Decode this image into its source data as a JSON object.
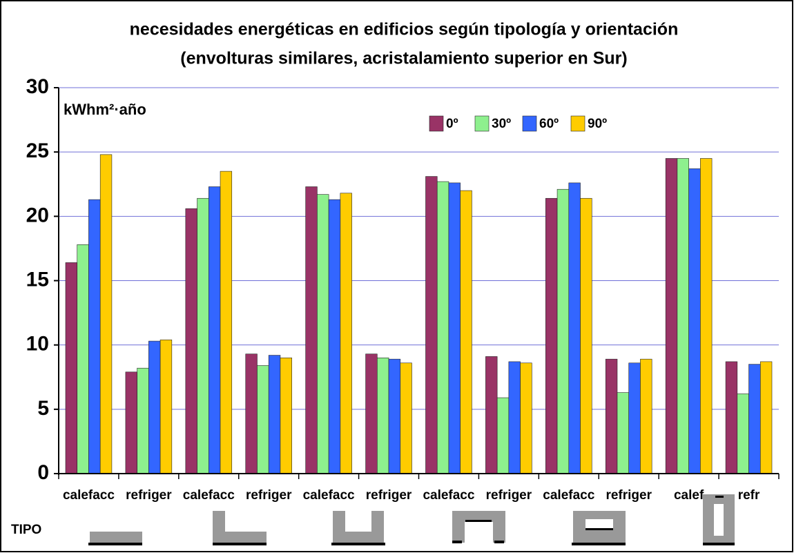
{
  "chart_data": {
    "type": "bar",
    "title": "necesidades energéticas en edificios según tipología y orientación",
    "subtitle": "(envolturas similares, acristalamiento superior en Sur)",
    "y_label": "kWhm²·año",
    "type_label": "TIPO",
    "categories": [
      "calefacc",
      "refriger",
      "calefacc",
      "refriger",
      "calefacc",
      "refriger",
      "calefacc",
      "refriger",
      "calefacc",
      "refriger",
      "calef",
      "refr"
    ],
    "series": [
      {
        "name": "0º",
        "color": "#993366",
        "values": [
          16.4,
          7.9,
          20.6,
          9.3,
          22.3,
          9.3,
          23.1,
          9.1,
          21.4,
          8.9,
          24.5,
          8.7
        ]
      },
      {
        "name": "30º",
        "color": "#8ef08e",
        "values": [
          17.8,
          8.2,
          21.4,
          8.4,
          21.7,
          9.0,
          22.7,
          5.9,
          22.1,
          6.3,
          24.5,
          6.2
        ]
      },
      {
        "name": "60º",
        "color": "#3366ff",
        "values": [
          21.3,
          10.3,
          22.3,
          9.2,
          21.3,
          8.9,
          22.6,
          8.7,
          22.6,
          8.6,
          23.7,
          8.5
        ]
      },
      {
        "name": "90º",
        "color": "#ffcc00",
        "values": [
          24.8,
          10.4,
          23.5,
          9.0,
          21.8,
          8.6,
          22.0,
          8.6,
          21.4,
          8.9,
          24.5,
          8.7
        ]
      }
    ],
    "ylim": [
      0,
      30
    ],
    "yticks": [
      0,
      5,
      10,
      15,
      20,
      25,
      30
    ],
    "grid": true,
    "legend": "top-right"
  }
}
